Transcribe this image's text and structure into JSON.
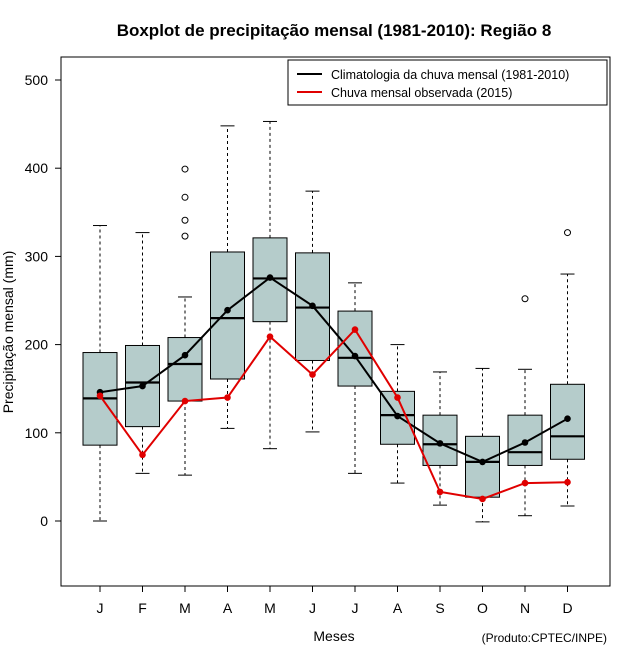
{
  "chart_data": {
    "type": "boxplot",
    "title": "Boxplot de precipitação mensal (1981-2010): Região 8",
    "xlabel": "Meses",
    "ylabel": "Precipitação mensal (mm)",
    "credit": "(Produto:CPTEC/INPE)",
    "ylim": [
      -70,
      520
    ],
    "yticks": [
      0,
      100,
      200,
      300,
      400,
      500
    ],
    "categories": [
      "J",
      "F",
      "M",
      "A",
      "M",
      "J",
      "J",
      "A",
      "S",
      "O",
      "N",
      "D"
    ],
    "box_color": "#b5cccb",
    "boxes": [
      {
        "whisker_low": 0,
        "q1": 86,
        "median": 139,
        "q3": 191,
        "whisker_high": 335,
        "outliers": []
      },
      {
        "whisker_low": 54,
        "q1": 107,
        "median": 157,
        "q3": 199,
        "whisker_high": 327,
        "outliers": []
      },
      {
        "whisker_low": 52,
        "q1": 136,
        "median": 178,
        "q3": 208,
        "whisker_high": 254,
        "outliers": [
          323,
          341,
          367,
          399
        ]
      },
      {
        "whisker_low": 105,
        "q1": 161,
        "median": 230,
        "q3": 305,
        "whisker_high": 448,
        "outliers": []
      },
      {
        "whisker_low": 82,
        "q1": 226,
        "median": 275,
        "q3": 321,
        "whisker_high": 453,
        "outliers": []
      },
      {
        "whisker_low": 101,
        "q1": 182,
        "median": 242,
        "q3": 304,
        "whisker_high": 374,
        "outliers": []
      },
      {
        "whisker_low": 54,
        "q1": 153,
        "median": 185,
        "q3": 238,
        "whisker_high": 270,
        "outliers": []
      },
      {
        "whisker_low": 43,
        "q1": 87,
        "median": 120,
        "q3": 147,
        "whisker_high": 200,
        "outliers": []
      },
      {
        "whisker_low": 18,
        "q1": 63,
        "median": 87,
        "q3": 120,
        "whisker_high": 169,
        "outliers": []
      },
      {
        "whisker_low": -1,
        "q1": 27,
        "median": 67,
        "q3": 96,
        "whisker_high": 173,
        "outliers": []
      },
      {
        "whisker_low": 6,
        "q1": 63,
        "median": 78,
        "q3": 120,
        "whisker_high": 172,
        "outliers": [
          252
        ]
      },
      {
        "whisker_low": 17,
        "q1": 70,
        "median": 96,
        "q3": 155,
        "whisker_high": 280,
        "outliers": [
          327
        ]
      }
    ],
    "series": [
      {
        "name": "Climatologia da chuva mensal (1981-2010)",
        "color": "#000000",
        "values": [
          146,
          153,
          188,
          239,
          276,
          244,
          187,
          119,
          88,
          67,
          89,
          116
        ]
      },
      {
        "name": "Chuva mensal observada (2015)",
        "color": "#e00000",
        "values": [
          142,
          75,
          136,
          140,
          209,
          166,
          217,
          140,
          33,
          25,
          43,
          44
        ]
      }
    ],
    "legend_position": "top-right"
  }
}
